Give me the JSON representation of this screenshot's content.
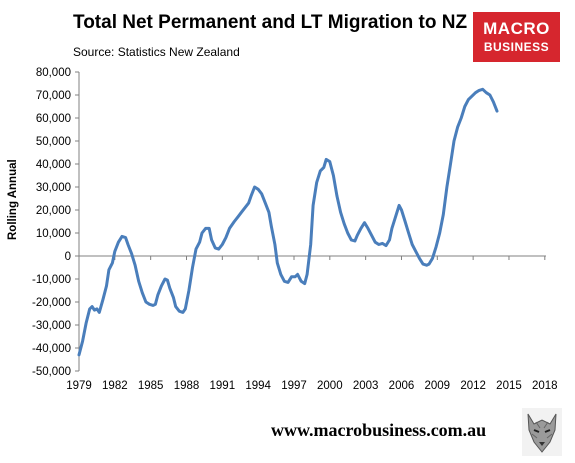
{
  "title": "Total Net Permanent and LT Migration to NZ",
  "source": "Source: Statistics New Zealand",
  "logo": {
    "line1": "MACRO",
    "line2": "BUSINESS",
    "color": "#d6262e"
  },
  "website": "www.macrobusiness.com.au",
  "wolf_icon": "wolf-icon",
  "chart_data": {
    "type": "line",
    "title": "Total Net Permanent and LT Migration to NZ",
    "xlabel": "",
    "ylabel": "Rolling Annual",
    "xlim": [
      1979,
      2018.1
    ],
    "ylim": [
      -50000,
      80000
    ],
    "x_ticks": [
      1979,
      1982,
      1985,
      1988,
      1991,
      1994,
      1997,
      2000,
      2003,
      2006,
      2009,
      2012,
      2015,
      2018
    ],
    "y_ticks": [
      -50000,
      -40000,
      -30000,
      -20000,
      -10000,
      0,
      10000,
      20000,
      30000,
      40000,
      50000,
      60000,
      70000,
      80000
    ],
    "y_tick_labels": [
      "-50,000",
      "-40,000",
      "-30,000",
      "-20,000",
      "-10,000",
      "0",
      "10,000",
      "20,000",
      "30,000",
      "40,000",
      "50,000",
      "60,000",
      "70,000",
      "80,000"
    ],
    "grid": false,
    "line_color": "#4a7ebb",
    "series": [
      {
        "points": [
          [
            1979.0,
            -43000
          ],
          [
            1979.3,
            -37000
          ],
          [
            1979.6,
            -29000
          ],
          [
            1979.9,
            -23000
          ],
          [
            1980.1,
            -22000
          ],
          [
            1980.3,
            -23500
          ],
          [
            1980.5,
            -23000
          ],
          [
            1980.7,
            -24500
          ],
          [
            1981.0,
            -19000
          ],
          [
            1981.3,
            -13000
          ],
          [
            1981.5,
            -6000
          ],
          [
            1981.8,
            -3000
          ],
          [
            1982.0,
            2000
          ],
          [
            1982.3,
            6000
          ],
          [
            1982.6,
            8500
          ],
          [
            1982.9,
            8000
          ],
          [
            1983.1,
            5000
          ],
          [
            1983.4,
            1000
          ],
          [
            1983.7,
            -4000
          ],
          [
            1984.0,
            -11000
          ],
          [
            1984.3,
            -16000
          ],
          [
            1984.6,
            -20000
          ],
          [
            1984.9,
            -21000
          ],
          [
            1985.2,
            -21500
          ],
          [
            1985.4,
            -21000
          ],
          [
            1985.6,
            -17000
          ],
          [
            1985.9,
            -13000
          ],
          [
            1986.2,
            -10000
          ],
          [
            1986.4,
            -10500
          ],
          [
            1986.6,
            -14000
          ],
          [
            1986.9,
            -18000
          ],
          [
            1987.1,
            -22000
          ],
          [
            1987.4,
            -24000
          ],
          [
            1987.7,
            -24500
          ],
          [
            1987.9,
            -23000
          ],
          [
            1988.2,
            -15000
          ],
          [
            1988.5,
            -5000
          ],
          [
            1988.8,
            3000
          ],
          [
            1989.1,
            6000
          ],
          [
            1989.3,
            10000
          ],
          [
            1989.6,
            12000
          ],
          [
            1989.9,
            12000
          ],
          [
            1990.1,
            7000
          ],
          [
            1990.4,
            3500
          ],
          [
            1990.7,
            3000
          ],
          [
            1991.0,
            5000
          ],
          [
            1991.3,
            8000
          ],
          [
            1991.6,
            12000
          ],
          [
            1992.0,
            15000
          ],
          [
            1992.3,
            17000
          ],
          [
            1992.6,
            19000
          ],
          [
            1992.9,
            21000
          ],
          [
            1993.2,
            23000
          ],
          [
            1993.4,
            26000
          ],
          [
            1993.7,
            30000
          ],
          [
            1994.0,
            29000
          ],
          [
            1994.3,
            27000
          ],
          [
            1994.6,
            23000
          ],
          [
            1994.9,
            19000
          ],
          [
            1995.1,
            13000
          ],
          [
            1995.4,
            5000
          ],
          [
            1995.6,
            -3000
          ],
          [
            1995.9,
            -8000
          ],
          [
            1996.2,
            -11000
          ],
          [
            1996.5,
            -11500
          ],
          [
            1996.8,
            -9000
          ],
          [
            1997.1,
            -9000
          ],
          [
            1997.3,
            -8000
          ],
          [
            1997.6,
            -11000
          ],
          [
            1997.9,
            -12000
          ],
          [
            1998.1,
            -8000
          ],
          [
            1998.4,
            5000
          ],
          [
            1998.6,
            22000
          ],
          [
            1998.9,
            32000
          ],
          [
            1999.2,
            37000
          ],
          [
            1999.5,
            38500
          ],
          [
            1999.7,
            42000
          ],
          [
            2000.0,
            41000
          ],
          [
            2000.3,
            35000
          ],
          [
            2000.6,
            26000
          ],
          [
            2000.9,
            19000
          ],
          [
            2001.2,
            14000
          ],
          [
            2001.5,
            10000
          ],
          [
            2001.8,
            7000
          ],
          [
            2002.1,
            6500
          ],
          [
            2002.3,
            9000
          ],
          [
            2002.6,
            12000
          ],
          [
            2002.9,
            14500
          ],
          [
            2003.2,
            12000
          ],
          [
            2003.5,
            9000
          ],
          [
            2003.8,
            6000
          ],
          [
            2004.1,
            5000
          ],
          [
            2004.4,
            5500
          ],
          [
            2004.7,
            4500
          ],
          [
            2005.0,
            7000
          ],
          [
            2005.2,
            12000
          ],
          [
            2005.5,
            17000
          ],
          [
            2005.8,
            22000
          ],
          [
            2006.0,
            20000
          ],
          [
            2006.3,
            15000
          ],
          [
            2006.6,
            10000
          ],
          [
            2006.9,
            5000
          ],
          [
            2007.2,
            2000
          ],
          [
            2007.5,
            -1000
          ],
          [
            2007.8,
            -3500
          ],
          [
            2008.1,
            -4000
          ],
          [
            2008.3,
            -3500
          ],
          [
            2008.6,
            -1000
          ],
          [
            2008.9,
            4000
          ],
          [
            2009.2,
            10000
          ],
          [
            2009.5,
            18000
          ],
          [
            2009.8,
            30000
          ],
          [
            2010.1,
            40000
          ],
          [
            2010.4,
            50000
          ],
          [
            2010.7,
            56000
          ],
          [
            2011.0,
            60000
          ],
          [
            2011.3,
            65000
          ],
          [
            2011.6,
            68000
          ],
          [
            2011.9,
            69500
          ],
          [
            2012.2,
            71000
          ],
          [
            2012.5,
            72000
          ],
          [
            2012.8,
            72500
          ],
          [
            2013.1,
            71000
          ],
          [
            2013.4,
            70000
          ],
          [
            2013.7,
            67000
          ],
          [
            2014.0,
            63000
          ]
        ]
      }
    ]
  }
}
